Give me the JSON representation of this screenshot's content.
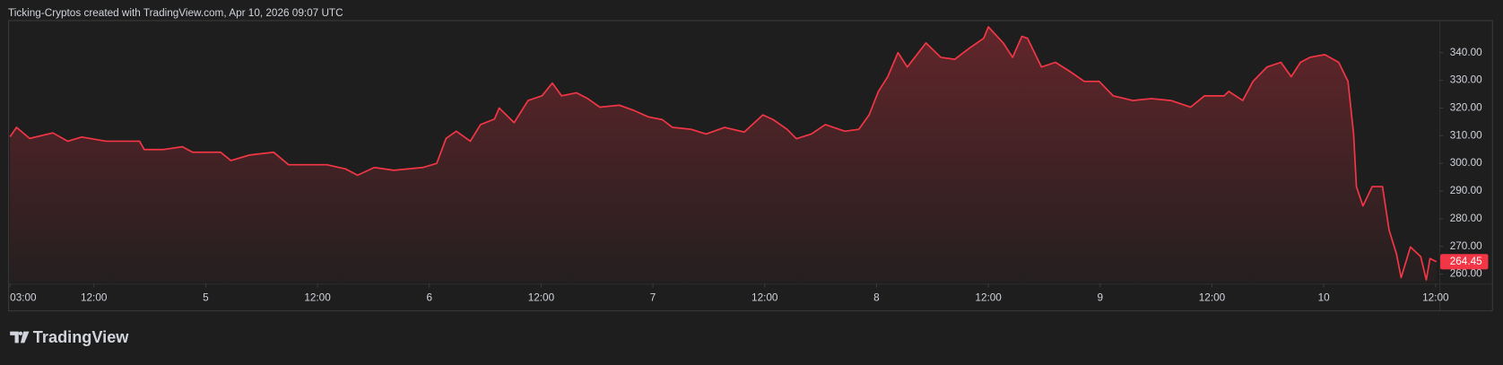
{
  "header": "Ticking-Cryptos created with TradingView.com, Apr 10, 2026 09:07 UTC",
  "logo": "TradingView",
  "chart_data": {
    "type": "area",
    "color": "#f23645",
    "x": [
      3.0,
      3.7,
      5.1,
      7.6,
      9.2,
      10.7,
      13.3,
      15.3,
      16.9,
      17.4,
      19.5,
      21.5,
      22.6,
      25.6,
      26.7,
      28.7,
      31.3,
      32.9,
      34.9,
      37.0,
      39.0,
      40.3,
      42.1,
      44.2,
      47.3,
      48.8,
      49.8,
      50.9,
      52.4,
      53.5,
      55.0,
      55.5,
      57.1,
      58.6,
      60.1,
      61.2,
      62.2,
      63.8,
      65.0,
      66.3,
      68.4,
      69.9,
      71.5,
      73.0,
      74.1,
      76.1,
      77.7,
      79.7,
      81.8,
      83.8,
      84.9,
      86.4,
      87.4,
      89.0,
      90.5,
      92.6,
      94.1,
      95.2,
      96.2,
      97.2,
      98.3,
      99.3,
      101.3,
      102.9,
      104.4,
      106.0,
      107.5,
      108.0,
      109.6,
      110.6,
      111.6,
      112.2,
      113.7,
      115.2,
      116.8,
      118.3,
      119.9,
      121.4,
      123.5,
      125.5,
      127.6,
      129.7,
      131.2,
      133.3,
      133.8,
      135.3,
      136.4,
      137.9,
      139.4,
      140.5,
      141.5,
      142.5,
      144.1,
      145.6,
      146.6,
      147.2,
      147.5,
      148.2,
      149.2,
      150.3,
      151.0,
      151.8,
      152.3,
      153.3,
      154.4,
      155.0,
      155.4,
      156.1
    ],
    "values": [
      309.6,
      313.0,
      309.0,
      311.0,
      308.0,
      309.5,
      308.0,
      308.0,
      308.0,
      305.0,
      305.0,
      306.0,
      304.0,
      304.0,
      301.0,
      303.0,
      304.0,
      299.5,
      299.5,
      299.5,
      298.0,
      295.7,
      298.5,
      297.5,
      298.5,
      300.0,
      309.0,
      311.6,
      308.0,
      314.0,
      316.0,
      320.0,
      314.7,
      322.7,
      324.4,
      329.0,
      324.4,
      325.5,
      323.4,
      320.3,
      321.0,
      319.2,
      316.8,
      315.8,
      313.0,
      312.3,
      310.6,
      313.0,
      311.3,
      317.5,
      315.8,
      312.3,
      308.9,
      310.6,
      314.0,
      311.6,
      312.3,
      317.5,
      326.0,
      331.3,
      340.0,
      334.8,
      343.5,
      338.3,
      337.6,
      341.7,
      345.2,
      349.3,
      343.5,
      338.3,
      345.9,
      345.2,
      334.8,
      336.5,
      333.1,
      329.6,
      329.6,
      324.4,
      322.7,
      323.4,
      322.7,
      320.3,
      324.4,
      324.4,
      326.0,
      322.7,
      329.6,
      334.8,
      336.5,
      331.3,
      336.5,
      338.3,
      339.3,
      336.5,
      329.6,
      310.6,
      291.6,
      284.6,
      291.6,
      291.6,
      276.0,
      267.3,
      258.7,
      269.8,
      266.3,
      257.9,
      265.6,
      264.45
    ],
    "xlim": [
      3,
      156.4
    ],
    "ylim": [
      256.9,
      352.1
    ],
    "xticks": [
      {
        "value": 3,
        "label": "03:00"
      },
      {
        "value": 12,
        "label": "12:00"
      },
      {
        "value": 24,
        "label": "5"
      },
      {
        "value": 36,
        "label": "12:00"
      },
      {
        "value": 48,
        "label": "6"
      },
      {
        "value": 60,
        "label": "12:00"
      },
      {
        "value": 72,
        "label": "7"
      },
      {
        "value": 84,
        "label": "12:00"
      },
      {
        "value": 96,
        "label": "8"
      },
      {
        "value": 108,
        "label": "12:00"
      },
      {
        "value": 120,
        "label": "9"
      },
      {
        "value": 132,
        "label": "12:00"
      },
      {
        "value": 144,
        "label": "10"
      },
      {
        "value": 156,
        "label": "12:00"
      }
    ],
    "yticks": [
      {
        "value": 260,
        "label": "260.00"
      },
      {
        "value": 270,
        "label": "270.00"
      },
      {
        "value": 280,
        "label": "280.00"
      },
      {
        "value": 290,
        "label": "290.00"
      },
      {
        "value": 300,
        "label": "300.00"
      },
      {
        "value": 310,
        "label": "310.00"
      },
      {
        "value": 320,
        "label": "320.00"
      },
      {
        "value": 330,
        "label": "330.00"
      },
      {
        "value": 340,
        "label": "340.00"
      }
    ]
  }
}
